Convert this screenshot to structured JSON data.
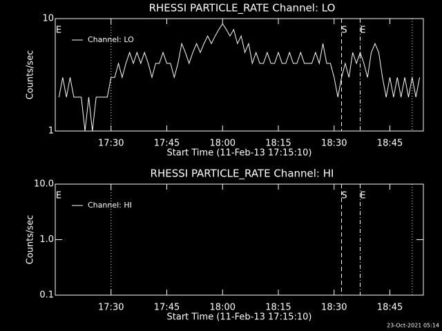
{
  "chart_data": [
    {
      "type": "line",
      "title": "RHESSI PARTICLE_RATE Channel: LO",
      "x_label": "Start Time (11-Feb-13 17:15:10)",
      "y_label": "Counts/sec",
      "log_y": true,
      "xlim": [
        "17:15",
        "18:54"
      ],
      "xticks": [
        "17:30",
        "17:45",
        "18:00",
        "18:15",
        "18:30",
        "18:45"
      ],
      "ylim": [
        1,
        10
      ],
      "yticks": [
        1,
        10
      ],
      "legend": "upper left",
      "x": [
        "17:16",
        "17:17",
        "17:18",
        "17:19",
        "17:20",
        "17:21",
        "17:22",
        "17:23",
        "17:24",
        "17:25",
        "17:26",
        "17:27",
        "17:28",
        "17:29",
        "17:30",
        "17:31",
        "17:32",
        "17:33",
        "17:34",
        "17:35",
        "17:36",
        "17:37",
        "17:38",
        "17:39",
        "17:40",
        "17:41",
        "17:42",
        "17:43",
        "17:44",
        "17:45",
        "17:46",
        "17:47",
        "17:48",
        "17:49",
        "17:50",
        "17:51",
        "17:52",
        "17:53",
        "17:54",
        "17:55",
        "17:56",
        "17:57",
        "17:58",
        "17:59",
        "18:00",
        "18:01",
        "18:02",
        "18:03",
        "18:04",
        "18:05",
        "18:06",
        "18:07",
        "18:08",
        "18:09",
        "18:10",
        "18:11",
        "18:12",
        "18:13",
        "18:14",
        "18:15",
        "18:16",
        "18:17",
        "18:18",
        "18:19",
        "18:20",
        "18:21",
        "18:22",
        "18:23",
        "18:24",
        "18:25",
        "18:26",
        "18:27",
        "18:28",
        "18:29",
        "18:30",
        "18:31",
        "18:32",
        "18:33",
        "18:34",
        "18:35",
        "18:36",
        "18:37",
        "18:38",
        "18:39",
        "18:40",
        "18:41",
        "18:42",
        "18:43",
        "18:44",
        "18:45",
        "18:46",
        "18:47",
        "18:48",
        "18:49",
        "18:50",
        "18:51",
        "18:52",
        "18:53"
      ],
      "series": [
        {
          "name": "Channel: LO",
          "color": "#ffffff",
          "values": [
            2,
            3,
            2,
            3,
            2,
            2,
            2,
            1,
            2,
            1,
            2,
            2,
            2,
            2,
            3,
            3,
            4,
            3,
            4,
            5,
            4,
            5,
            4,
            5,
            4,
            3,
            4,
            4,
            5,
            4,
            4,
            3,
            4,
            6,
            5,
            4,
            5,
            6,
            5,
            6,
            7,
            6,
            7,
            8,
            9,
            8,
            7,
            8,
            6,
            7,
            5,
            6,
            4,
            5,
            4,
            4,
            5,
            4,
            4,
            5,
            4,
            4,
            5,
            4,
            4,
            5,
            4,
            4,
            4,
            5,
            4,
            6,
            4,
            4,
            3,
            2,
            3,
            4,
            3,
            5,
            4,
            5,
            4,
            3,
            5,
            6,
            5,
            3,
            2,
            3,
            2,
            3,
            2,
            3,
            2,
            3,
            2,
            3
          ]
        }
      ],
      "vlines": [
        {
          "x": "17:30",
          "style": "dotted"
        },
        {
          "x": "18:32",
          "style": "dashed",
          "label": "S"
        },
        {
          "x": "18:37",
          "style": "dashdot",
          "label": "E"
        },
        {
          "x": "18:51",
          "style": "dotted"
        }
      ],
      "edge_label": "E"
    },
    {
      "type": "line",
      "title": "RHESSI PARTICLE_RATE Channel: HI",
      "x_label": "Start Time (11-Feb-13 17:15:10)",
      "y_label": "Counts/sec",
      "log_y": true,
      "xlim": [
        "17:15",
        "18:54"
      ],
      "xticks": [
        "17:30",
        "17:45",
        "18:00",
        "18:15",
        "18:30",
        "18:45"
      ],
      "ylim": [
        0.1,
        10
      ],
      "yticks": [
        0.1,
        {
          "value": 1,
          "label": "1.0"
        },
        {
          "value": 10,
          "label": "10.0"
        }
      ],
      "legend": "upper left",
      "x": [],
      "series": [
        {
          "name": "Channel: HI",
          "color": "#ffffff",
          "values": []
        }
      ],
      "vlines": [
        {
          "x": "17:30",
          "style": "dotted"
        },
        {
          "x": "18:32",
          "style": "dashed",
          "label": "S"
        },
        {
          "x": "18:37",
          "style": "dashdot",
          "label": "E"
        },
        {
          "x": "18:51",
          "style": "dotted"
        }
      ],
      "edge_label": "E"
    }
  ],
  "footer": "23-Oct-2021 05:14"
}
